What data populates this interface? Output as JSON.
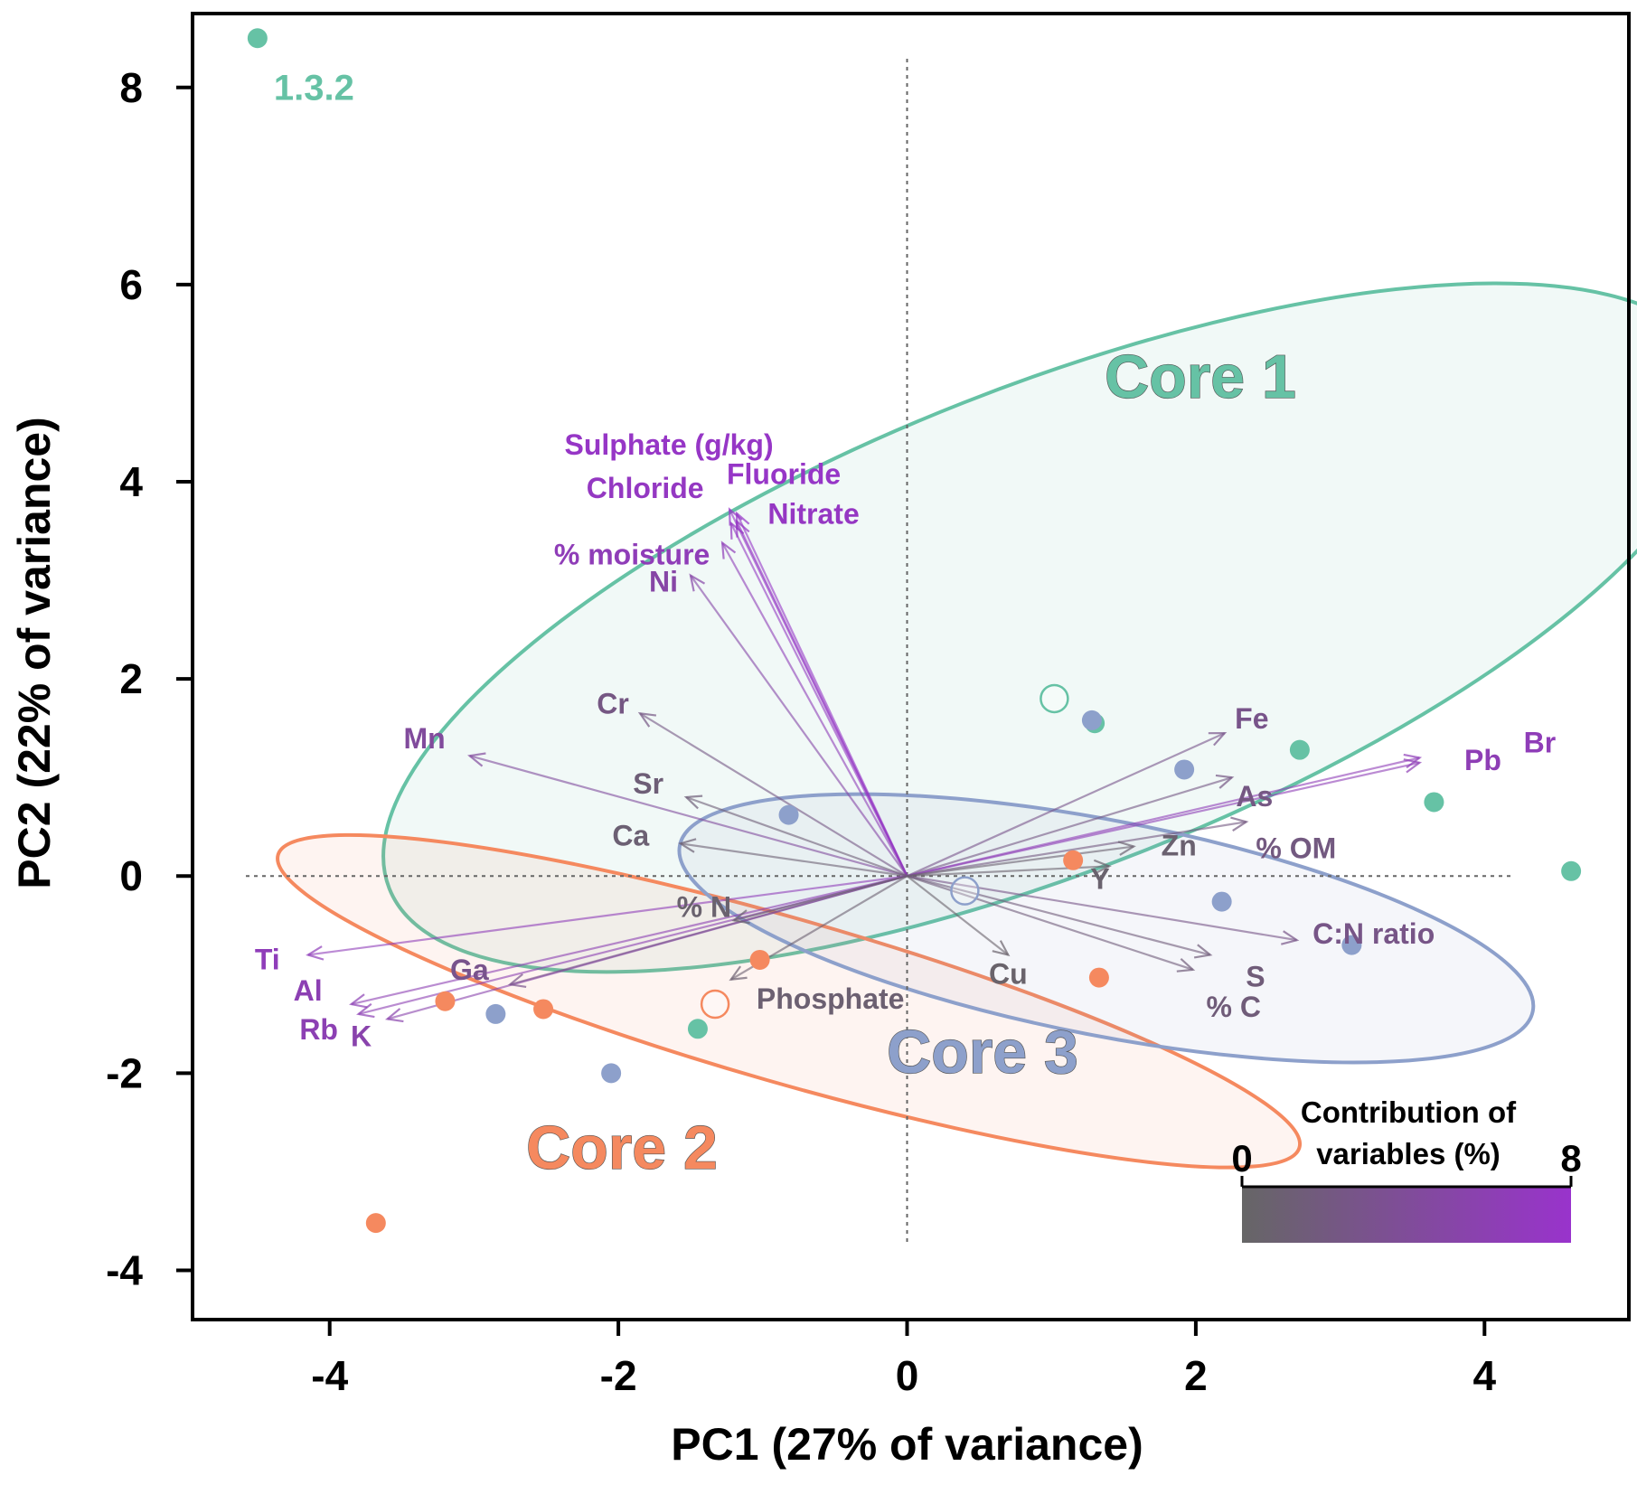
{
  "chart_data": {
    "type": "scatter",
    "title": "",
    "xlabel": "PC1 (27% of variance)",
    "ylabel": "PC2 (22% of variance)",
    "xlim": [
      -4.95,
      5.0
    ],
    "ylim": [
      -4.5,
      8.75
    ],
    "xticks": [
      -4,
      -2,
      0,
      2,
      4
    ],
    "yticks": [
      -4,
      -2,
      0,
      2,
      4,
      6,
      8
    ],
    "grid": false,
    "groups": [
      {
        "name": "Core 1",
        "color": "#66C2A5",
        "points": [
          [
            -4.5,
            8.5
          ],
          [
            1.3,
            1.55
          ],
          [
            2.72,
            1.28
          ],
          [
            3.65,
            0.75
          ],
          [
            4.6,
            0.05
          ],
          [
            -1.45,
            -1.55
          ]
        ],
        "centroid": [
          1.02,
          1.8
        ],
        "ellipse": {
          "cx": 1.0,
          "cy": 2.52,
          "rx": 4.93,
          "ry": 2.45,
          "angle_deg": -21.5
        }
      },
      {
        "name": "Core 2",
        "color": "#F5895F",
        "points": [
          [
            -3.68,
            -3.52
          ],
          [
            -3.2,
            -1.27
          ],
          [
            -2.52,
            -1.35
          ],
          [
            -1.02,
            -0.85
          ],
          [
            1.15,
            0.16
          ],
          [
            1.33,
            -1.03
          ]
        ],
        "centroid": [
          -1.33,
          -1.3
        ],
        "ellipse": {
          "cx": -0.82,
          "cy": -1.27,
          "rx": 3.68,
          "ry": 0.83,
          "angle_deg": 16
        }
      },
      {
        "name": "Core 3",
        "color": "#8DA0CB",
        "points": [
          [
            -2.85,
            -1.4
          ],
          [
            -2.05,
            -2.0
          ],
          [
            -0.82,
            0.62
          ],
          [
            1.28,
            1.58
          ],
          [
            1.92,
            1.08
          ],
          [
            2.18,
            -0.26
          ],
          [
            3.08,
            -0.7
          ]
        ],
        "centroid": [
          0.4,
          -0.15
        ],
        "ellipse": {
          "cx": 1.38,
          "cy": -0.53,
          "rx": 3.01,
          "ry": 1.09,
          "angle_deg": 11
        }
      }
    ],
    "variables": [
      {
        "name": "Sulphate (g/kg)",
        "x": -1.18,
        "y": 3.68,
        "contribution": 7.5
      },
      {
        "name": "Chloride",
        "x": -1.22,
        "y": 3.58,
        "contribution": 7.2
      },
      {
        "name": "Fluoride",
        "x": -1.23,
        "y": 3.72,
        "contribution": 7.6
      },
      {
        "name": "Nitrate",
        "x": -1.18,
        "y": 3.6,
        "contribution": 7.3
      },
      {
        "name": "% moisture",
        "x": -1.28,
        "y": 3.38,
        "contribution": 6.4
      },
      {
        "name": "Ni",
        "x": -1.5,
        "y": 3.05,
        "contribution": 5.0
      },
      {
        "name": "Cr",
        "x": -1.85,
        "y": 1.65,
        "contribution": 2.3
      },
      {
        "name": "Mn",
        "x": -3.03,
        "y": 1.22,
        "contribution": 4.2
      },
      {
        "name": "Sr",
        "x": -1.53,
        "y": 0.8,
        "contribution": 1.3
      },
      {
        "name": "Ca",
        "x": -1.57,
        "y": 0.33,
        "contribution": 1.0
      },
      {
        "name": "Ti",
        "x": -4.15,
        "y": -0.8,
        "contribution": 6.5
      },
      {
        "name": "Al",
        "x": -3.85,
        "y": -1.3,
        "contribution": 6.0
      },
      {
        "name": "Rb",
        "x": -3.8,
        "y": -1.4,
        "contribution": 6.0
      },
      {
        "name": "K",
        "x": -3.6,
        "y": -1.45,
        "contribution": 5.5
      },
      {
        "name": "Ga",
        "x": -2.75,
        "y": -1.1,
        "contribution": 3.0
      },
      {
        "name": "% N",
        "x": -1.2,
        "y": -0.45,
        "contribution": 0.6
      },
      {
        "name": "Phosphate",
        "x": -1.22,
        "y": -1.05,
        "contribution": 0.9
      },
      {
        "name": "Fe",
        "x": 2.2,
        "y": 1.45,
        "contribution": 2.8
      },
      {
        "name": "As",
        "x": 2.25,
        "y": 1.0,
        "contribution": 2.3
      },
      {
        "name": "Pb",
        "x": 3.55,
        "y": 1.15,
        "contribution": 6.2
      },
      {
        "name": "Br",
        "x": 3.55,
        "y": 1.2,
        "contribution": 6.4
      },
      {
        "name": "% OM",
        "x": 2.35,
        "y": 0.55,
        "contribution": 2.0
      },
      {
        "name": "Zn",
        "x": 1.57,
        "y": 0.3,
        "contribution": 0.8
      },
      {
        "name": "Y",
        "x": 1.4,
        "y": 0.1,
        "contribution": 0.6
      },
      {
        "name": "C:N ratio",
        "x": 2.7,
        "y": -0.65,
        "contribution": 2.6
      },
      {
        "name": "S",
        "x": 2.1,
        "y": -0.8,
        "contribution": 1.5
      },
      {
        "name": "% C",
        "x": 1.98,
        "y": -0.95,
        "contribution": 1.5
      },
      {
        "name": "Cu",
        "x": 0.7,
        "y": -0.8,
        "contribution": 0.4
      }
    ],
    "annotations": [
      {
        "text": "1.3.2",
        "x": -4.5,
        "y": 8.5
      }
    ],
    "legend": {
      "title_line1": "Contribution of",
      "title_line2": "variables (%)",
      "min": "0",
      "max": "8",
      "color_low": "#666666",
      "color_high": "#9933CC",
      "placement": "bottom-right"
    }
  }
}
